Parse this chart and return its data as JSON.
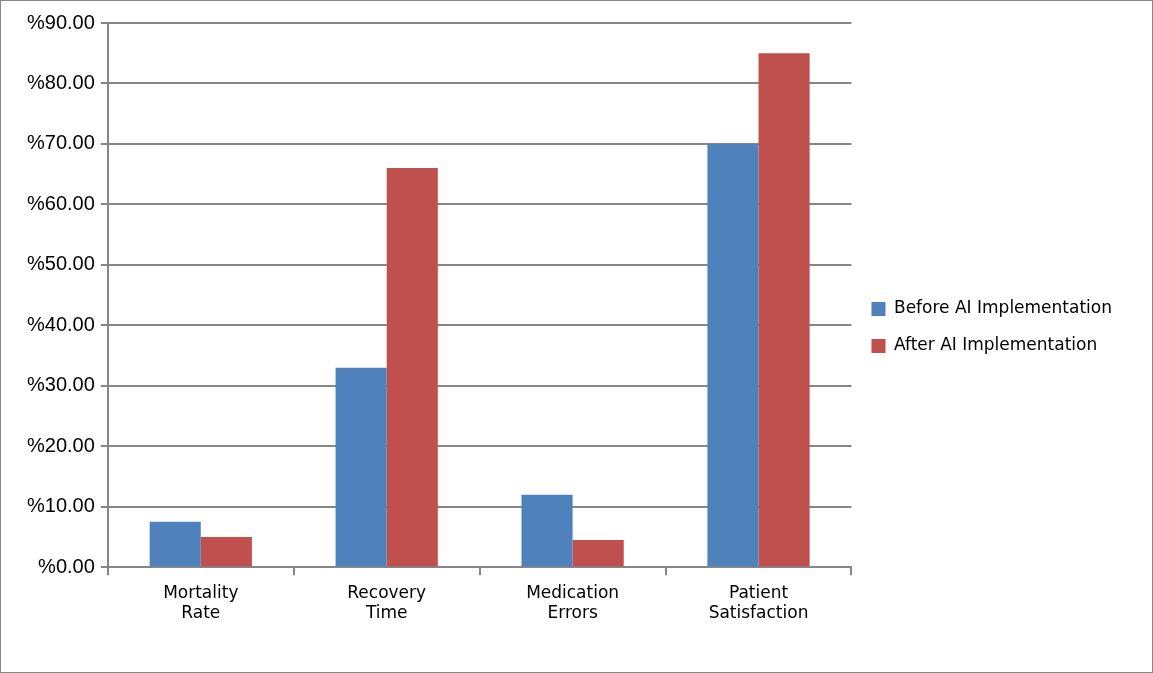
{
  "chart_data": {
    "type": "bar",
    "categories": [
      "Mortality Rate",
      "Recovery Time",
      "Medication Errors",
      "Patient Satisfaction"
    ],
    "series": [
      {
        "name": "Before AI Implementation",
        "color": "#4f81bd",
        "values": [
          7.5,
          33,
          12,
          70
        ]
      },
      {
        "name": "After AI Implementation",
        "color": "#c0504d",
        "values": [
          5,
          66,
          4.5,
          85
        ]
      }
    ],
    "ylim": [
      0,
      90
    ],
    "yticks": [
      {
        "value": 0,
        "label": "%0.00"
      },
      {
        "value": 10,
        "label": "%10.00"
      },
      {
        "value": 20,
        "label": "%20.00"
      },
      {
        "value": 30,
        "label": "%30.00"
      },
      {
        "value": 40,
        "label": "%40.00"
      },
      {
        "value": 50,
        "label": "%50.00"
      },
      {
        "value": 60,
        "label": "%60.00"
      },
      {
        "value": 70,
        "label": "%70.00"
      },
      {
        "value": 80,
        "label": "%80.00"
      },
      {
        "value": 90,
        "label": "%90.00"
      }
    ],
    "grid": "y",
    "legend": "right"
  }
}
